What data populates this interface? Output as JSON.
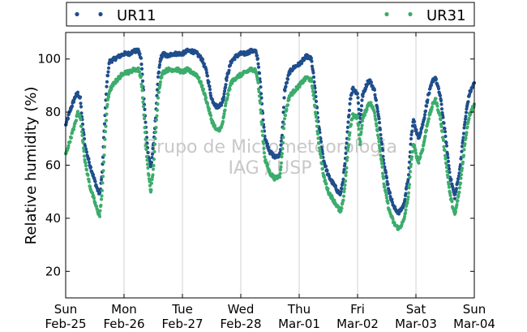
{
  "chart_data": {
    "type": "scatter",
    "ylabel": "Relative humidity (%)",
    "xlabel": "",
    "ylim": [
      10,
      110
    ],
    "yticks": [
      20,
      40,
      60,
      80,
      100
    ],
    "xlim": [
      "2018-02-25 00:00",
      "2018-03-04 00:00"
    ],
    "xticks": [
      {
        "top": "Sun",
        "bottom": "Feb-25"
      },
      {
        "top": "Mon",
        "bottom": "Feb-26"
      },
      {
        "top": "Tue",
        "bottom": "Feb-27"
      },
      {
        "top": "Wed",
        "bottom": "Feb-28"
      },
      {
        "top": "Thu",
        "bottom": "Mar-01"
      },
      {
        "top": "Fri",
        "bottom": "Mar-02"
      },
      {
        "top": "Sat",
        "bottom": "Mar-03"
      },
      {
        "top": "Sun",
        "bottom": "Mar-04"
      }
    ],
    "grid": "vertical",
    "legend": {
      "placement": "top",
      "columns": 2
    },
    "watermark": [
      "Grupo de Micrometeorologia",
      "IAG / USP"
    ],
    "series": [
      {
        "name": "UR11",
        "color": "#1f4e8c",
        "points": [
          [
            "2018-02-25 00:00",
            75
          ],
          [
            "2018-02-25 02:00",
            81
          ],
          [
            "2018-02-25 04:00",
            86
          ],
          [
            "2018-02-25 05:00",
            87
          ],
          [
            "2018-02-25 06:00",
            85
          ],
          [
            "2018-02-25 07:00",
            75
          ],
          [
            "2018-02-25 08:00",
            67
          ],
          [
            "2018-02-25 10:00",
            60
          ],
          [
            "2018-02-25 12:00",
            54
          ],
          [
            "2018-02-25 13:00",
            51
          ],
          [
            "2018-02-25 14:00",
            49
          ],
          [
            "2018-02-25 15:00",
            57
          ],
          [
            "2018-02-25 16:00",
            76
          ],
          [
            "2018-02-25 17:00",
            92
          ],
          [
            "2018-02-25 18:00",
            99
          ],
          [
            "2018-02-25 20:00",
            100
          ],
          [
            "2018-02-25 22:00",
            101
          ],
          [
            "2018-02-26 00:00",
            102
          ],
          [
            "2018-02-26 02:00",
            102
          ],
          [
            "2018-02-26 04:00",
            103
          ],
          [
            "2018-02-26 06:00",
            103
          ],
          [
            "2018-02-26 07:00",
            100
          ],
          [
            "2018-02-26 08:00",
            88
          ],
          [
            "2018-02-26 09:00",
            74
          ],
          [
            "2018-02-26 10:00",
            63
          ],
          [
            "2018-02-26 11:00",
            59
          ],
          [
            "2018-02-26 12:00",
            67
          ],
          [
            "2018-02-26 13:00",
            78
          ],
          [
            "2018-02-26 14:00",
            93
          ],
          [
            "2018-02-26 15:00",
            100
          ],
          [
            "2018-02-26 16:00",
            102
          ],
          [
            "2018-02-26 18:00",
            101
          ],
          [
            "2018-02-26 20:00",
            102
          ],
          [
            "2018-02-26 22:00",
            102
          ],
          [
            "2018-02-27 00:00",
            102
          ],
          [
            "2018-02-27 02:00",
            103
          ],
          [
            "2018-02-27 04:00",
            103
          ],
          [
            "2018-02-27 06:00",
            102
          ],
          [
            "2018-02-27 08:00",
            100
          ],
          [
            "2018-02-27 10:00",
            95
          ],
          [
            "2018-02-27 12:00",
            85
          ],
          [
            "2018-02-27 14:00",
            82
          ],
          [
            "2018-02-27 16:00",
            83
          ],
          [
            "2018-02-27 17:00",
            86
          ],
          [
            "2018-02-27 18:00",
            92
          ],
          [
            "2018-02-27 20:00",
            99
          ],
          [
            "2018-02-27 22:00",
            101
          ],
          [
            "2018-02-28 00:00",
            102
          ],
          [
            "2018-02-28 02:00",
            102
          ],
          [
            "2018-02-28 04:00",
            103
          ],
          [
            "2018-02-28 06:00",
            103
          ],
          [
            "2018-02-28 07:00",
            100
          ],
          [
            "2018-02-28 08:00",
            91
          ],
          [
            "2018-02-28 09:00",
            79
          ],
          [
            "2018-02-28 10:00",
            70
          ],
          [
            "2018-02-28 12:00",
            65
          ],
          [
            "2018-02-28 14:00",
            63
          ],
          [
            "2018-02-28 16:00",
            64
          ],
          [
            "2018-02-28 17:00",
            71
          ],
          [
            "2018-02-28 18:00",
            88
          ],
          [
            "2018-02-28 20:00",
            95
          ],
          [
            "2018-02-28 22:00",
            97
          ],
          [
            "2018-03-01 00:00",
            98
          ],
          [
            "2018-03-01 02:00",
            100
          ],
          [
            "2018-03-01 03:00",
            101
          ],
          [
            "2018-03-01 05:00",
            100
          ],
          [
            "2018-03-01 06:00",
            93
          ],
          [
            "2018-03-01 08:00",
            75
          ],
          [
            "2018-03-01 10:00",
            62
          ],
          [
            "2018-03-01 12:00",
            56
          ],
          [
            "2018-03-01 14:00",
            53
          ],
          [
            "2018-03-01 16:00",
            50
          ],
          [
            "2018-03-01 17:00",
            49
          ],
          [
            "2018-03-01 18:00",
            54
          ],
          [
            "2018-03-01 19:00",
            62
          ],
          [
            "2018-03-01 20:00",
            74
          ],
          [
            "2018-03-01 21:00",
            85
          ],
          [
            "2018-03-01 22:00",
            89
          ],
          [
            "2018-03-02 00:00",
            87
          ],
          [
            "2018-03-02 01:00",
            76
          ],
          [
            "2018-03-02 02:00",
            86
          ],
          [
            "2018-03-02 04:00",
            91
          ],
          [
            "2018-03-02 05:00",
            92
          ],
          [
            "2018-03-02 07:00",
            88
          ],
          [
            "2018-03-02 09:00",
            76
          ],
          [
            "2018-03-02 11:00",
            60
          ],
          [
            "2018-03-02 13:00",
            50
          ],
          [
            "2018-03-02 15:00",
            44
          ],
          [
            "2018-03-02 17:00",
            42
          ],
          [
            "2018-03-02 19:00",
            45
          ],
          [
            "2018-03-02 21:00",
            56
          ],
          [
            "2018-03-02 22:00",
            70
          ],
          [
            "2018-03-02 23:00",
            77
          ],
          [
            "2018-03-03 01:00",
            70
          ],
          [
            "2018-03-03 03:00",
            76
          ],
          [
            "2018-03-03 05:00",
            86
          ],
          [
            "2018-03-03 07:00",
            92
          ],
          [
            "2018-03-03 08:00",
            93
          ],
          [
            "2018-03-03 10:00",
            86
          ],
          [
            "2018-03-03 12:00",
            72
          ],
          [
            "2018-03-03 14:00",
            56
          ],
          [
            "2018-03-03 16:00",
            48
          ],
          [
            "2018-03-03 18:00",
            58
          ],
          [
            "2018-03-03 20:00",
            75
          ],
          [
            "2018-03-03 21:00",
            82
          ],
          [
            "2018-03-03 22:00",
            87
          ],
          [
            "2018-03-04 00:00",
            91
          ]
        ]
      },
      {
        "name": "UR31",
        "color": "#3dac6c",
        "points": [
          [
            "2018-02-25 00:00",
            64
          ],
          [
            "2018-02-25 02:00",
            70
          ],
          [
            "2018-02-25 04:00",
            76
          ],
          [
            "2018-02-25 05:00",
            80
          ],
          [
            "2018-02-25 06:00",
            78
          ],
          [
            "2018-02-25 07:00",
            70
          ],
          [
            "2018-02-25 08:00",
            61
          ],
          [
            "2018-02-25 10:00",
            52
          ],
          [
            "2018-02-25 12:00",
            46
          ],
          [
            "2018-02-25 13:00",
            43
          ],
          [
            "2018-02-25 14:00",
            41
          ],
          [
            "2018-02-25 15:00",
            50
          ],
          [
            "2018-02-25 16:00",
            67
          ],
          [
            "2018-02-25 17:00",
            82
          ],
          [
            "2018-02-25 18:00",
            88
          ],
          [
            "2018-02-25 20:00",
            91
          ],
          [
            "2018-02-25 22:00",
            93
          ],
          [
            "2018-02-26 00:00",
            95
          ],
          [
            "2018-02-26 02:00",
            95
          ],
          [
            "2018-02-26 04:00",
            96
          ],
          [
            "2018-02-26 06:00",
            96
          ],
          [
            "2018-02-26 07:00",
            93
          ],
          [
            "2018-02-26 08:00",
            82
          ],
          [
            "2018-02-26 09:00",
            67
          ],
          [
            "2018-02-26 10:00",
            57
          ],
          [
            "2018-02-26 11:00",
            50
          ],
          [
            "2018-02-26 12:00",
            58
          ],
          [
            "2018-02-26 13:00",
            72
          ],
          [
            "2018-02-26 14:00",
            86
          ],
          [
            "2018-02-26 15:00",
            92
          ],
          [
            "2018-02-26 16:00",
            95
          ],
          [
            "2018-02-26 18:00",
            96
          ],
          [
            "2018-02-26 20:00",
            96
          ],
          [
            "2018-02-26 22:00",
            96
          ],
          [
            "2018-02-27 00:00",
            95
          ],
          [
            "2018-02-27 02:00",
            96
          ],
          [
            "2018-02-27 04:00",
            95
          ],
          [
            "2018-02-27 06:00",
            94
          ],
          [
            "2018-02-27 08:00",
            90
          ],
          [
            "2018-02-27 10:00",
            84
          ],
          [
            "2018-02-27 12:00",
            77
          ],
          [
            "2018-02-27 14:00",
            73
          ],
          [
            "2018-02-27 16:00",
            74
          ],
          [
            "2018-02-27 17:00",
            78
          ],
          [
            "2018-02-27 18:00",
            84
          ],
          [
            "2018-02-27 20:00",
            91
          ],
          [
            "2018-02-27 22:00",
            93
          ],
          [
            "2018-02-28 00:00",
            94
          ],
          [
            "2018-02-28 02:00",
            95
          ],
          [
            "2018-02-28 04:00",
            96
          ],
          [
            "2018-02-28 06:00",
            96
          ],
          [
            "2018-02-28 07:00",
            92
          ],
          [
            "2018-02-28 08:00",
            83
          ],
          [
            "2018-02-28 09:00",
            71
          ],
          [
            "2018-02-28 10:00",
            62
          ],
          [
            "2018-02-28 12:00",
            57
          ],
          [
            "2018-02-28 14:00",
            55
          ],
          [
            "2018-02-28 16:00",
            56
          ],
          [
            "2018-02-28 17:00",
            64
          ],
          [
            "2018-02-28 18:00",
            78
          ],
          [
            "2018-02-28 20:00",
            86
          ],
          [
            "2018-02-28 22:00",
            88
          ],
          [
            "2018-03-01 00:00",
            90
          ],
          [
            "2018-03-01 02:00",
            92
          ],
          [
            "2018-03-01 03:00",
            93
          ],
          [
            "2018-03-01 05:00",
            92
          ],
          [
            "2018-03-01 06:00",
            86
          ],
          [
            "2018-03-01 08:00",
            69
          ],
          [
            "2018-03-01 10:00",
            56
          ],
          [
            "2018-03-01 12:00",
            50
          ],
          [
            "2018-03-01 14:00",
            47
          ],
          [
            "2018-03-01 16:00",
            44
          ],
          [
            "2018-03-01 17:00",
            42
          ],
          [
            "2018-03-01 18:00",
            46
          ],
          [
            "2018-03-01 19:00",
            54
          ],
          [
            "2018-03-01 20:00",
            65
          ],
          [
            "2018-03-01 21:00",
            74
          ],
          [
            "2018-03-01 22:00",
            79
          ],
          [
            "2018-03-02 00:00",
            78
          ],
          [
            "2018-03-02 01:00",
            68
          ],
          [
            "2018-03-02 02:00",
            77
          ],
          [
            "2018-03-02 04:00",
            82
          ],
          [
            "2018-03-02 05:00",
            84
          ],
          [
            "2018-03-02 07:00",
            80
          ],
          [
            "2018-03-02 09:00",
            68
          ],
          [
            "2018-03-02 11:00",
            52
          ],
          [
            "2018-03-02 13:00",
            43
          ],
          [
            "2018-03-02 15:00",
            38
          ],
          [
            "2018-03-02 17:00",
            36
          ],
          [
            "2018-03-02 19:00",
            39
          ],
          [
            "2018-03-02 21:00",
            49
          ],
          [
            "2018-03-02 22:00",
            61
          ],
          [
            "2018-03-02 23:00",
            68
          ],
          [
            "2018-03-03 01:00",
            61
          ],
          [
            "2018-03-03 03:00",
            67
          ],
          [
            "2018-03-03 05:00",
            77
          ],
          [
            "2018-03-03 07:00",
            83
          ],
          [
            "2018-03-03 08:00",
            85
          ],
          [
            "2018-03-03 10:00",
            78
          ],
          [
            "2018-03-03 12:00",
            64
          ],
          [
            "2018-03-03 14:00",
            49
          ],
          [
            "2018-03-03 16:00",
            41
          ],
          [
            "2018-03-03 18:00",
            51
          ],
          [
            "2018-03-03 20:00",
            67
          ],
          [
            "2018-03-03 21:00",
            74
          ],
          [
            "2018-03-03 22:00",
            79
          ],
          [
            "2018-03-04 00:00",
            83
          ]
        ]
      }
    ]
  }
}
